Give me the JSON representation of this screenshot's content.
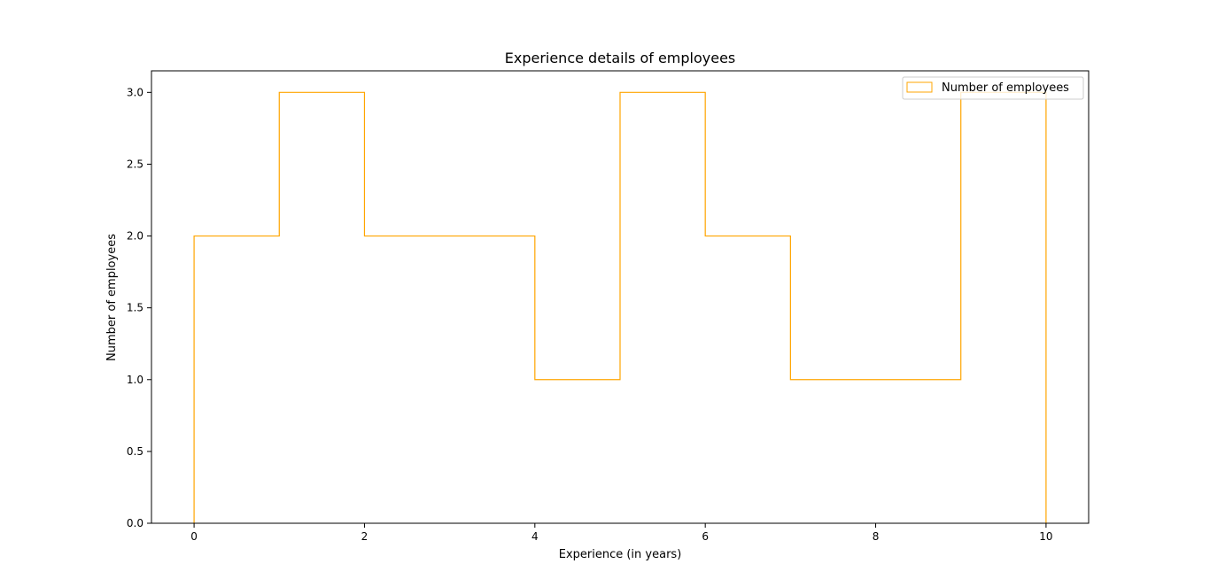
{
  "chart_data": {
    "type": "bar",
    "histtype": "step",
    "title": "Experience details of employees",
    "xlabel": "Experience (in years)",
    "ylabel": "Number of employees",
    "bin_edges": [
      0,
      1,
      2,
      3,
      4,
      5,
      6,
      7,
      8,
      9,
      10
    ],
    "series": [
      {
        "name": "Number of employees",
        "values": [
          2,
          3,
          2,
          2,
          1,
          3,
          2,
          1,
          1,
          3
        ],
        "color": "#ffa500"
      }
    ],
    "xlim": [
      -0.5,
      10.5
    ],
    "ylim": [
      0,
      3.15
    ],
    "xticks": [
      0,
      2,
      4,
      6,
      8,
      10
    ],
    "xtick_labels": [
      "0",
      "2",
      "4",
      "6",
      "8",
      "10"
    ],
    "yticks": [
      0,
      0.5,
      1,
      1.5,
      2,
      2.5,
      3
    ],
    "ytick_labels": [
      "0.0",
      "0.5",
      "1.0",
      "1.5",
      "2.0",
      "2.5",
      "3.0"
    ],
    "grid": false,
    "legend": {
      "position": "upper-right"
    }
  }
}
